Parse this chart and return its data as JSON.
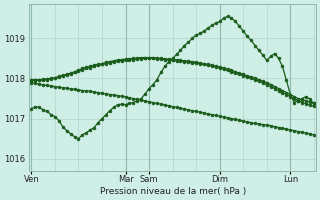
{
  "background_color": "#ceeee6",
  "grid_color": "#b8d8d0",
  "line_color": "#1a5c1a",
  "text_color": "#222222",
  "xlabel_text": "Pression niveau de la mer( hPa )",
  "ylim": [
    1015.7,
    1019.85
  ],
  "yticks": [
    1016,
    1017,
    1018,
    1019
  ],
  "day_labels": [
    "Ven",
    "Mar",
    "Sam",
    "Dim",
    "Lun"
  ],
  "day_positions": [
    0,
    24,
    30,
    48,
    66
  ],
  "n_points": 73,
  "series_smooth1": [
    1017.97,
    1017.97,
    1017.97,
    1017.98,
    1017.99,
    1018.0,
    1018.02,
    1018.05,
    1018.08,
    1018.1,
    1018.13,
    1018.17,
    1018.2,
    1018.25,
    1018.28,
    1018.3,
    1018.33,
    1018.35,
    1018.37,
    1018.4,
    1018.42,
    1018.44,
    1018.46,
    1018.47,
    1018.48,
    1018.49,
    1018.5,
    1018.51,
    1018.52,
    1018.52,
    1018.52,
    1018.52,
    1018.51,
    1018.5,
    1018.49,
    1018.48,
    1018.47,
    1018.46,
    1018.45,
    1018.44,
    1018.43,
    1018.42,
    1018.4,
    1018.38,
    1018.37,
    1018.35,
    1018.33,
    1018.31,
    1018.28,
    1018.26,
    1018.23,
    1018.2,
    1018.17,
    1018.13,
    1018.1,
    1018.07,
    1018.04,
    1018.01,
    1017.97,
    1017.93,
    1017.9,
    1017.85,
    1017.8,
    1017.75,
    1017.7,
    1017.65,
    1017.6,
    1017.55,
    1017.5,
    1017.47,
    1017.44,
    1017.41,
    1017.38
  ],
  "series_smooth2": [
    1017.95,
    1017.95,
    1017.95,
    1017.96,
    1017.97,
    1017.99,
    1018.01,
    1018.03,
    1018.06,
    1018.09,
    1018.12,
    1018.15,
    1018.18,
    1018.22,
    1018.25,
    1018.27,
    1018.3,
    1018.33,
    1018.35,
    1018.37,
    1018.39,
    1018.41,
    1018.43,
    1018.44,
    1018.45,
    1018.46,
    1018.47,
    1018.48,
    1018.49,
    1018.5,
    1018.5,
    1018.5,
    1018.49,
    1018.48,
    1018.47,
    1018.46,
    1018.45,
    1018.44,
    1018.43,
    1018.42,
    1018.4,
    1018.39,
    1018.38,
    1018.36,
    1018.35,
    1018.33,
    1018.31,
    1018.28,
    1018.26,
    1018.23,
    1018.2,
    1018.17,
    1018.13,
    1018.1,
    1018.07,
    1018.04,
    1018.0,
    1017.97,
    1017.93,
    1017.89,
    1017.85,
    1017.8,
    1017.75,
    1017.7,
    1017.65,
    1017.6,
    1017.55,
    1017.5,
    1017.45,
    1017.4,
    1017.37,
    1017.34,
    1017.31
  ],
  "series_jagged": [
    1017.25,
    1017.3,
    1017.28,
    1017.22,
    1017.18,
    1017.1,
    1017.05,
    1016.95,
    1016.8,
    1016.7,
    1016.62,
    1016.55,
    1016.5,
    1016.6,
    1016.65,
    1016.72,
    1016.78,
    1016.9,
    1017.0,
    1017.1,
    1017.2,
    1017.28,
    1017.35,
    1017.36,
    1017.35,
    1017.38,
    1017.4,
    1017.45,
    1017.5,
    1017.62,
    1017.75,
    1017.85,
    1017.97,
    1018.15,
    1018.3,
    1018.42,
    1018.5,
    1018.6,
    1018.7,
    1018.82,
    1018.9,
    1019.0,
    1019.08,
    1019.12,
    1019.18,
    1019.25,
    1019.32,
    1019.38,
    1019.42,
    1019.5,
    1019.55,
    1019.5,
    1019.42,
    1019.3,
    1019.18,
    1019.05,
    1018.95,
    1018.82,
    1018.7,
    1018.58,
    1018.45,
    1018.55,
    1018.62,
    1018.5,
    1018.3,
    1017.95,
    1017.6,
    1017.4,
    1017.45,
    1017.5,
    1017.55,
    1017.48,
    1017.38
  ],
  "series_trend": [
    1017.9,
    1017.88,
    1017.86,
    1017.84,
    1017.83,
    1017.81,
    1017.8,
    1017.78,
    1017.77,
    1017.76,
    1017.74,
    1017.73,
    1017.72,
    1017.7,
    1017.69,
    1017.68,
    1017.66,
    1017.65,
    1017.63,
    1017.62,
    1017.6,
    1017.59,
    1017.57,
    1017.56,
    1017.54,
    1017.52,
    1017.5,
    1017.48,
    1017.46,
    1017.44,
    1017.42,
    1017.4,
    1017.38,
    1017.36,
    1017.34,
    1017.32,
    1017.3,
    1017.28,
    1017.26,
    1017.24,
    1017.22,
    1017.2,
    1017.18,
    1017.16,
    1017.14,
    1017.12,
    1017.1,
    1017.08,
    1017.06,
    1017.04,
    1017.02,
    1017.0,
    1016.98,
    1016.96,
    1016.94,
    1016.92,
    1016.9,
    1016.88,
    1016.87,
    1016.85,
    1016.84,
    1016.82,
    1016.8,
    1016.78,
    1016.76,
    1016.74,
    1016.72,
    1016.7,
    1016.68,
    1016.66,
    1016.64,
    1016.62,
    1016.6
  ]
}
